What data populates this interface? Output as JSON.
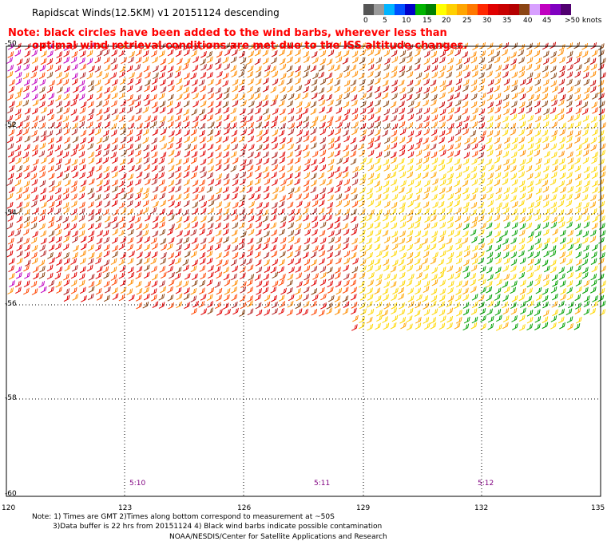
{
  "title": "Rapidscat Winds(12.5KM) v1 20151124 descending",
  "note_line1": "Note: black circles have been added to the wind barbs, wherever less than",
  "note_line2": "optimal wind retrieval conditions are met due to the ISS altitude changes.",
  "legend": {
    "labels": [
      "0",
      "5",
      "10",
      "15",
      "20",
      "25",
      "30",
      "35",
      "40",
      "45",
      ">50 knots"
    ],
    "colors": [
      "#555555",
      "#9a9a9a",
      "#00b4ff",
      "#0050ff",
      "#0000c8",
      "#00b400",
      "#008000",
      "#ffff00",
      "#ffd000",
      "#ffa500",
      "#ff7800",
      "#ff2800",
      "#e00000",
      "#c80000",
      "#b40000",
      "#8b4513",
      "#d8a0ff",
      "#c000c0",
      "#8000c0",
      "#500070"
    ]
  },
  "y_labels": [
    "-50",
    "-52",
    "-54",
    "-56",
    "-58",
    "-60"
  ],
  "x_labels": [
    "120",
    "123",
    "126",
    "129",
    "132",
    "135"
  ],
  "times": [
    "5:10",
    "5:11",
    "5:12"
  ],
  "footer": {
    "line1": "Note: 1) Times are GMT 2)Times along bottom correspond to measurement at ~50S",
    "line2": "3)Data buffer is 22 hrs from 20151124 4) Black wind barbs indicate possible contamination",
    "credit": "NOAA/NESDIS/Center for Satellite Applications and Research"
  }
}
